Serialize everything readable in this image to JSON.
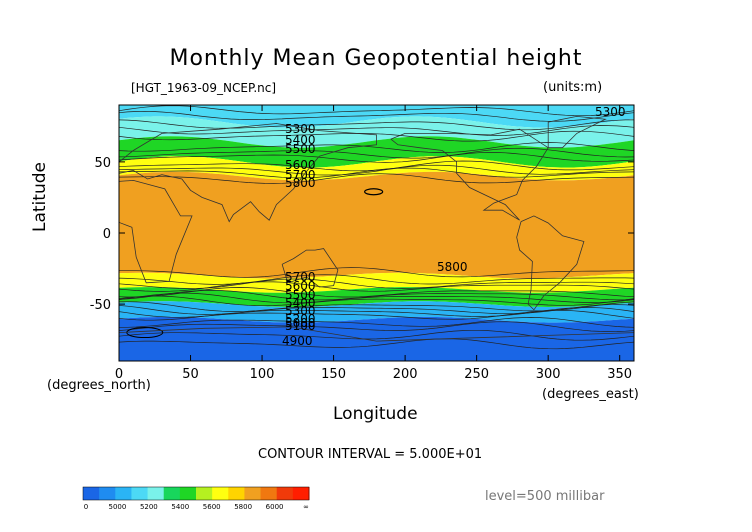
{
  "page": {
    "title": "Monthly Mean Geopotential height",
    "file_label": "[HGT_1963-09_NCEP.nc]",
    "units_label": "(units:m)",
    "contour_interval": "CONTOUR INTERVAL = 5.000E+01",
    "level_label": "level=500 millibar",
    "x_unit": "(degrees_east)",
    "y_unit": "(degrees_north)"
  },
  "chart_data": {
    "type": "heatmap",
    "title": "Monthly Mean Geopotential height",
    "xlabel": "Longitude",
    "ylabel": "Latitude",
    "xlim": [
      0,
      360
    ],
    "ylim": [
      -90,
      90
    ],
    "x_ticks": [
      0,
      50,
      100,
      150,
      200,
      250,
      300,
      350
    ],
    "y_ticks": [
      50,
      0,
      -50
    ],
    "colorbar": {
      "boundaries": [
        0,
        4900,
        5000,
        5100,
        5200,
        5300,
        5400,
        5500,
        5600,
        5700,
        5800,
        5900,
        6000,
        6100
      ],
      "tick_labels": [
        "0",
        "5000",
        "5200",
        "5400",
        "5600",
        "5800",
        "6000",
        "∞"
      ],
      "colors": [
        "#1a66e6",
        "#1f8cf0",
        "#2ab4f5",
        "#4cd9f5",
        "#7af2ea",
        "#18d65c",
        "#1fd625",
        "#b5f020",
        "#ffff10",
        "#ffd400",
        "#f0a020",
        "#f07810",
        "#f03a0a",
        "#ff1e00"
      ]
    },
    "bands": [
      {
        "north": "90N",
        "south": "80N",
        "value": 5300,
        "color": "#4cd9f5"
      },
      {
        "north": "80N",
        "south": "65N",
        "value": 5500,
        "color": "#7af2ea"
      },
      {
        "north": "65N",
        "south": "50N",
        "value": 5550,
        "color": "#1fd625"
      },
      {
        "north": "50N",
        "south": "40N",
        "value": 5700,
        "color": "#ffff10"
      },
      {
        "north": "40N",
        "south": "30S",
        "value": 5850,
        "color": "#f0a020"
      },
      {
        "north": "30S",
        "south": "40S",
        "value": 5750,
        "color": "#ffff10"
      },
      {
        "north": "40S",
        "south": "50S",
        "value": 5550,
        "color": "#1fd625"
      },
      {
        "north": "50S",
        "south": "60S",
        "value": 5200,
        "color": "#2ab4f5"
      },
      {
        "north": "60S",
        "south": "90S",
        "value": 5000,
        "color": "#1a66e6"
      }
    ],
    "contour_labels": [
      "5300",
      "5300",
      "5400",
      "5500",
      "5600",
      "5700",
      "5800",
      "5800",
      "5700",
      "5600",
      "5500",
      "5400",
      "5300",
      "5200",
      "5100",
      "5000",
      "4900"
    ]
  }
}
